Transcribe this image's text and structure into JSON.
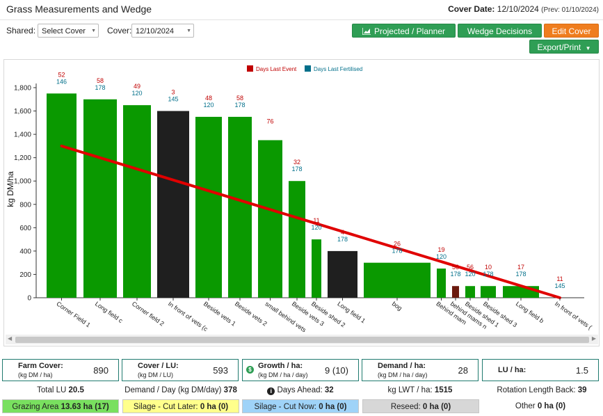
{
  "header": {
    "title": "Grass Measurements and Wedge",
    "cover_date_label": "Cover Date:",
    "cover_date_value": "12/10/2024",
    "prev_date": "(Prev: 01/10/2024)"
  },
  "filters": {
    "shared_label": "Shared:",
    "shared_value": "Select Cover",
    "cover_label": "Cover:",
    "cover_value": "12/10/2024"
  },
  "buttons": {
    "projected": "Projected / Planner",
    "wedge": "Wedge Decisions",
    "edit": "Edit Cover",
    "export": "Export/Print"
  },
  "colors": {
    "green_bar": "#0a9900",
    "dark_bar": "#1f1f1f",
    "brown_bar": "#6b1a0e",
    "wedge_line": "#e00000",
    "last_event": "#c00000",
    "last_fertilised": "#006f8a",
    "button_green": "#2f9e55",
    "button_orange": "#ef7d1e"
  },
  "chart_data": {
    "type": "bar",
    "ylabel": "kg DM/ha",
    "ylim": [
      0,
      1800
    ],
    "yticks": [
      "0",
      "200",
      "400",
      "600",
      "800",
      "1,000",
      "1,200",
      "1,400",
      "1,600",
      "1,800"
    ],
    "legend": [
      {
        "name": "Days Last Event",
        "color": "#e00000"
      },
      {
        "name": "Days Last Fertilised",
        "color": "#006f8a"
      }
    ],
    "legend_position": "top-center",
    "grid": false,
    "paddocks": [
      {
        "name": "Corner Field 1",
        "value": 1750,
        "event": "52",
        "fert": "146",
        "color": "green"
      },
      {
        "name": "Long field c",
        "value": 1700,
        "event": "58",
        "fert": "178",
        "color": "green"
      },
      {
        "name": "Corner field 2",
        "value": 1650,
        "event": "49",
        "fert": "120",
        "color": "green"
      },
      {
        "name": "In front of vets (c",
        "value": 1600,
        "event": "3",
        "fert": "145",
        "color": "dark"
      },
      {
        "name": "Beside vets 1",
        "value": 1550,
        "event": "48",
        "fert": "120",
        "color": "green"
      },
      {
        "name": "Beside vets 2",
        "value": 1550,
        "event": "58",
        "fert": "178",
        "color": "green"
      },
      {
        "name": "small behind vets",
        "value": 1350,
        "event": "76",
        "fert": "",
        "color": "green"
      },
      {
        "name": "Beside vets 3",
        "value": 1000,
        "event": "32",
        "fert": "178",
        "color": "green"
      },
      {
        "name": "Beside shed 2",
        "value": 500,
        "event": "11",
        "fert": "120",
        "color": "green"
      },
      {
        "name": "Long field 1",
        "value": 400,
        "event": "4",
        "fert": "178",
        "color": "dark"
      },
      {
        "name": "bog",
        "value": 300,
        "event": "26",
        "fert": "178",
        "color": "green"
      },
      {
        "name": "Behind mam",
        "value": 250,
        "event": "19",
        "fert": "120",
        "color": "green"
      },
      {
        "name": "behind mams n",
        "value": 100,
        "event": "56",
        "fert": "178",
        "color": "brown"
      },
      {
        "name": "Beside shed 1",
        "value": 100,
        "event": "56",
        "fert": "120",
        "color": "green"
      },
      {
        "name": "Beside shed 3",
        "value": 100,
        "event": "10",
        "fert": "178",
        "color": "green"
      },
      {
        "name": "Long field b",
        "value": 100,
        "event": "17",
        "fert": "178",
        "color": "green"
      },
      {
        "name": "In front of vets (",
        "value": 0,
        "event": "11",
        "fert": "145",
        "color": "green"
      }
    ],
    "wedge_line": {
      "start": 1300,
      "end": 0
    }
  },
  "stats": {
    "farm_cover": {
      "title": "Farm Cover:",
      "sub": "(kg DM / ha)",
      "value": "890"
    },
    "cover_lu": {
      "title": "Cover / LU:",
      "sub": "(kg DM / LU)",
      "value": "593"
    },
    "growth": {
      "title": "Growth / ha:",
      "sub": "(kg DM / ha / day)",
      "value": "9 (10)",
      "icon": "$"
    },
    "demand": {
      "title": "Demand / ha:",
      "sub": "(kg DM / ha / day)",
      "value": "28"
    },
    "lu_ha": {
      "title": "LU / ha:",
      "value": "1.5"
    }
  },
  "stats_row2": {
    "total_lu_label": "Total LU",
    "total_lu_value": "20.5",
    "demand_day_label": "Demand / Day (kg DM/day)",
    "demand_day_value": "378",
    "days_ahead_label": "Days Ahead:",
    "days_ahead_value": "32",
    "kg_lwt_label": "kg LWT / ha:",
    "kg_lwt_value": "1515",
    "rotation_label": "Rotation Length Back:",
    "rotation_value": "39"
  },
  "stats_row3": {
    "grazing_label": "Grazing Area",
    "grazing_value": "13.63 ha (17)",
    "silage_later_label": "Silage - Cut Later:",
    "silage_later_value": "0 ha (0)",
    "silage_now_label": "Silage - Cut Now:",
    "silage_now_value": "0 ha (0)",
    "reseed_label": "Reseed:",
    "reseed_value": "0 ha (0)",
    "other_label": "Other",
    "other_value": "0 ha (0)"
  }
}
